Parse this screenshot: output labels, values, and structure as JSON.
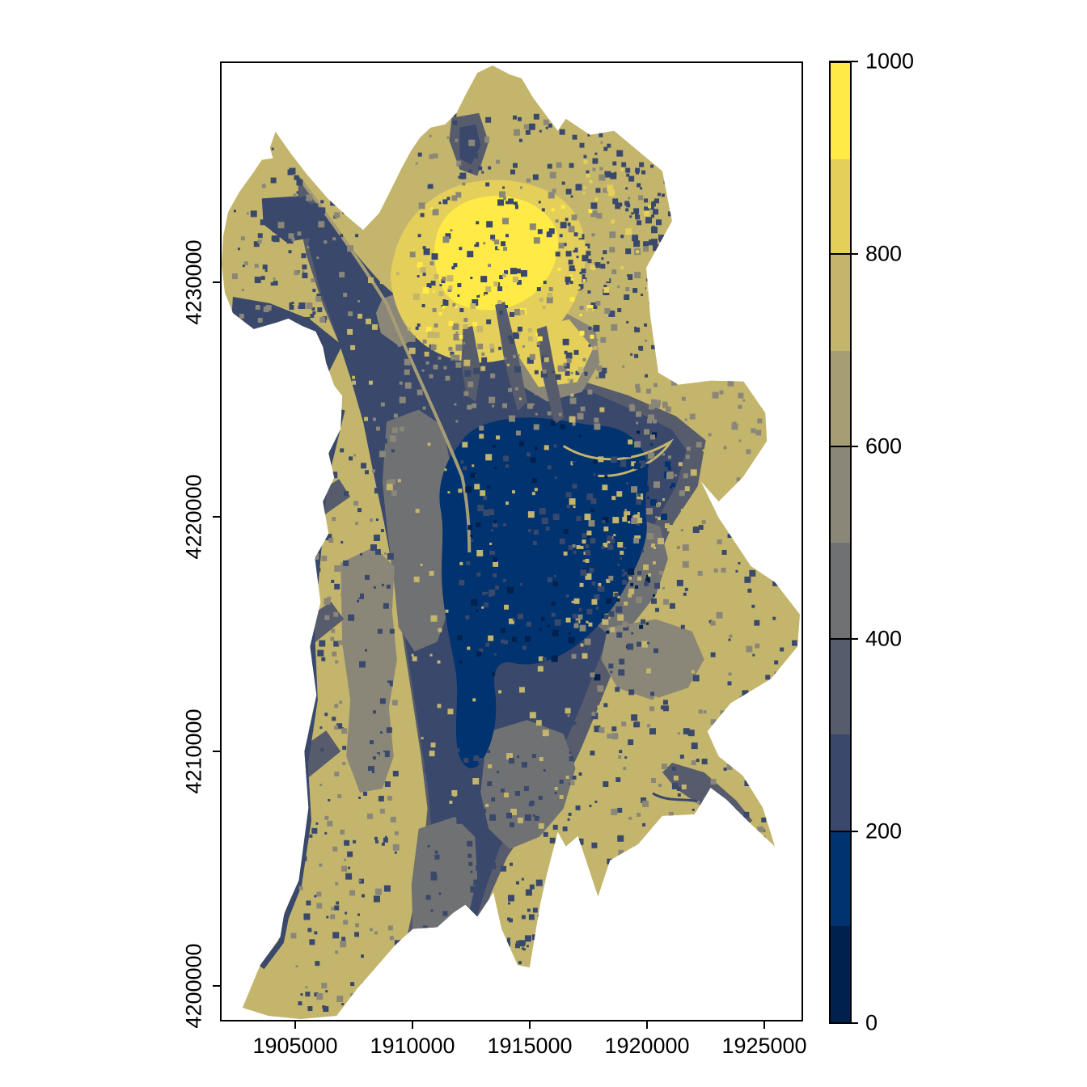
{
  "chart_data": {
    "type": "heatmap",
    "description_visible_text": "",
    "x_axis": {
      "tick_labels": [
        "1905000",
        "1910000",
        "1915000",
        "1920000",
        "1925000"
      ]
    },
    "y_axis": {
      "tick_labels": [
        "4230000",
        "4220000",
        "4210000",
        "4200000"
      ]
    },
    "legend": {
      "min": 0,
      "max": 1000,
      "tick_labels": [
        "1000",
        "800",
        "600",
        "400",
        "200",
        "0"
      ],
      "bins": [
        {
          "from": 0,
          "to": 100,
          "color": "#00204D"
        },
        {
          "from": 100,
          "to": 200,
          "color": "#00336F"
        },
        {
          "from": 200,
          "to": 300,
          "color": "#39486B"
        },
        {
          "from": 300,
          "to": 400,
          "color": "#575C6D"
        },
        {
          "from": 400,
          "to": 500,
          "color": "#707173"
        },
        {
          "from": 500,
          "to": 600,
          "color": "#8A8779"
        },
        {
          "from": 600,
          "to": 700,
          "color": "#A69D75"
        },
        {
          "from": 700,
          "to": 800,
          "color": "#C4B56C"
        },
        {
          "from": 800,
          "to": 900,
          "color": "#E4CF5B"
        },
        {
          "from": 900,
          "to": 1000,
          "color": "#FFEA46"
        }
      ],
      "palette": [
        "#00204D",
        "#00336F",
        "#39486B",
        "#575C6D",
        "#707173",
        "#8A8779",
        "#A69D75",
        "#C4B56C",
        "#E4CF5B",
        "#FFEA46"
      ]
    }
  }
}
